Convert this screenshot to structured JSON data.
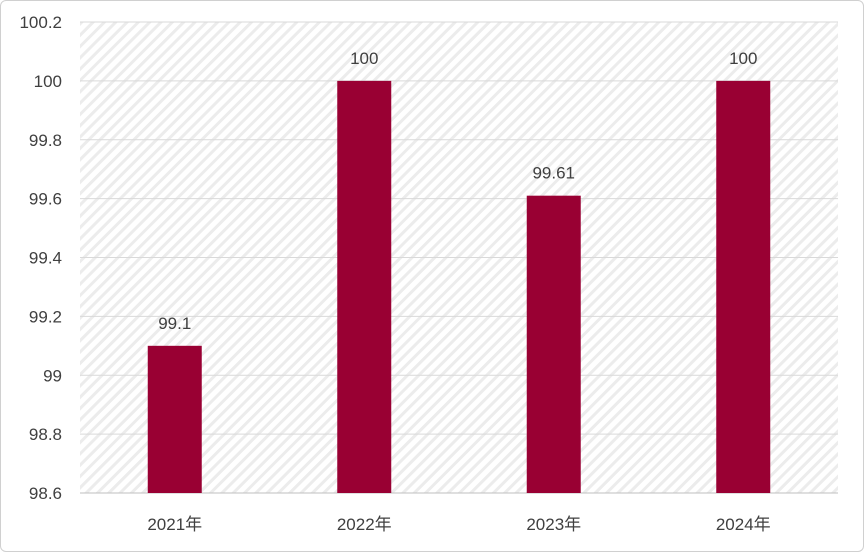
{
  "chart_data": {
    "type": "bar",
    "categories": [
      "2021年",
      "2022年",
      "2023年",
      "2024年"
    ],
    "values": [
      99.1,
      100,
      99.61,
      100
    ],
    "data_labels": [
      "99.1",
      "100",
      "99.61",
      "100"
    ],
    "title": "",
    "xlabel": "",
    "ylabel": "",
    "ylim": [
      98.6,
      100.2
    ],
    "yticks": [
      "98.6",
      "98.8",
      "99",
      "99.2",
      "99.4",
      "99.6",
      "99.8",
      "100",
      "100.2"
    ],
    "grid": true,
    "legend": "none",
    "bar_color": "#990033",
    "background": "diagonal-hatch"
  }
}
